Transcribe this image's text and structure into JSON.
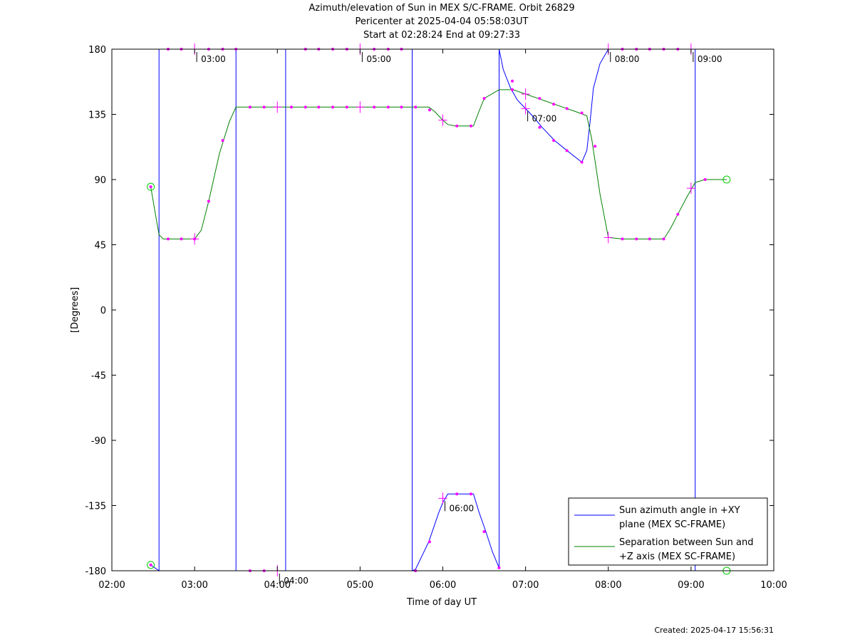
{
  "title": {
    "line1": "Azimuth/elevation of Sun in MEX S/C-FRAME.  Orbit 26829",
    "line2": "Pericenter at 2025-04-04 05:58:03UT",
    "line3": "Start at 02:28:24 End at 09:27:33"
  },
  "footer": {
    "created": "Created: 2025-04-17 15:56:31"
  },
  "colors": {
    "azimuth": "#0000ff",
    "separation": "#008000",
    "markers": "#ff00ff",
    "endpoints": "#00cc00"
  },
  "chart_data": {
    "type": "line",
    "xlabel": "Time of day UT",
    "ylabel": "[Degrees]",
    "xlim": [
      2,
      10
    ],
    "ylim": [
      -180,
      180
    ],
    "xticks": [
      2,
      3,
      4,
      5,
      6,
      7,
      8,
      9,
      10
    ],
    "xtick_labels": [
      "02:00",
      "03:00",
      "04:00",
      "05:00",
      "06:00",
      "07:00",
      "08:00",
      "09:00",
      "10:00"
    ],
    "yticks": [
      180,
      135,
      90,
      45,
      0,
      -45,
      -90,
      -135,
      -180
    ],
    "ytick_labels": [
      "180",
      "135",
      "90",
      "45",
      "0",
      "-45",
      "-90",
      "-135",
      "-180"
    ],
    "legend_position": "bottom-right",
    "series": [
      {
        "name": "Sun azimuth angle in +XY plane (MEX SC-FRAME)",
        "legend_lines": [
          "Sun azimuth angle in +XY",
          "plane (MEX SC-FRAME)"
        ],
        "segments": [
          [
            [
              2.47,
              -176
            ],
            [
              2.57,
              -180
            ],
            [
              2.57,
              180
            ],
            [
              3.5,
              180
            ],
            [
              3.5,
              -180
            ],
            [
              4.1,
              -180
            ],
            [
              4.1,
              180
            ],
            [
              5.63,
              180
            ],
            [
              5.63,
              -180
            ],
            [
              5.67,
              -179
            ],
            [
              5.83,
              -160
            ],
            [
              5.95,
              -140
            ],
            [
              6.0,
              -133
            ],
            [
              6.06,
              -127
            ],
            [
              6.15,
              -127
            ],
            [
              6.37,
              -127
            ],
            [
              6.44,
              -140
            ],
            [
              6.52,
              -153
            ],
            [
              6.6,
              -167
            ],
            [
              6.68,
              -178
            ],
            [
              6.68,
              180
            ]
          ],
          [
            [
              6.68,
              180
            ],
            [
              6.73,
              166
            ],
            [
              6.82,
              153
            ],
            [
              6.9,
              145
            ],
            [
              7.0,
              139
            ],
            [
              7.1,
              133
            ],
            [
              7.2,
              126
            ],
            [
              7.35,
              117
            ],
            [
              7.5,
              110
            ],
            [
              7.68,
              102
            ],
            [
              7.74,
              110
            ],
            [
              7.78,
              130
            ],
            [
              7.82,
              153
            ],
            [
              7.9,
              170
            ],
            [
              8.0,
              180
            ],
            [
              9.05,
              180
            ],
            [
              9.05,
              -180
            ],
            [
              9.43,
              -180
            ]
          ]
        ],
        "markers": [
          [
            2.47,
            -176
          ],
          [
            2.68,
            180
          ],
          [
            2.84,
            180
          ],
          [
            3.17,
            180
          ],
          [
            3.34,
            180
          ],
          [
            3.5,
            180
          ],
          [
            3.67,
            -180
          ],
          [
            3.84,
            -180
          ],
          [
            4.34,
            180
          ],
          [
            4.5,
            180
          ],
          [
            4.67,
            180
          ],
          [
            4.84,
            180
          ],
          [
            5.17,
            180
          ],
          [
            5.34,
            180
          ],
          [
            5.5,
            180
          ],
          [
            5.67,
            -180
          ],
          [
            5.84,
            -160
          ],
          [
            6.17,
            -127
          ],
          [
            6.34,
            -127
          ],
          [
            6.5,
            -153
          ],
          [
            6.68,
            -178
          ],
          [
            6.84,
            158
          ],
          [
            7.17,
            126
          ],
          [
            7.34,
            117
          ],
          [
            7.5,
            110
          ],
          [
            7.68,
            102
          ],
          [
            8.17,
            180
          ],
          [
            8.34,
            180
          ],
          [
            8.5,
            180
          ],
          [
            8.67,
            180
          ],
          [
            8.84,
            180
          ]
        ],
        "hour_marks": [
          [
            3.0,
            180
          ],
          [
            4.0,
            -180
          ],
          [
            5.0,
            180
          ],
          [
            6.0,
            -130
          ],
          [
            7.0,
            139
          ],
          [
            8.0,
            180
          ],
          [
            9.0,
            180
          ]
        ],
        "endpoints": [
          [
            2.47,
            -176
          ],
          [
            9.43,
            -180
          ]
        ]
      },
      {
        "name": "Separation between Sun and +Z axis (MEX SC-FRAME)",
        "legend_lines": [
          "Separation between Sun and",
          "+Z axis (MEX SC-FRAME)"
        ],
        "points": [
          [
            2.47,
            85
          ],
          [
            2.53,
            65
          ],
          [
            2.57,
            52
          ],
          [
            2.62,
            49
          ],
          [
            2.7,
            49
          ],
          [
            2.85,
            49
          ],
          [
            3.0,
            49
          ],
          [
            3.08,
            55
          ],
          [
            3.17,
            75
          ],
          [
            3.3,
            108
          ],
          [
            3.42,
            130
          ],
          [
            3.5,
            140
          ],
          [
            3.67,
            140
          ],
          [
            4.0,
            140
          ],
          [
            4.5,
            140
          ],
          [
            5.0,
            140
          ],
          [
            5.5,
            140
          ],
          [
            5.83,
            140
          ],
          [
            5.9,
            137
          ],
          [
            6.0,
            131
          ],
          [
            6.06,
            128
          ],
          [
            6.15,
            127
          ],
          [
            6.37,
            127
          ],
          [
            6.43,
            136
          ],
          [
            6.5,
            146
          ],
          [
            6.68,
            152
          ],
          [
            6.85,
            152
          ],
          [
            7.0,
            149
          ],
          [
            7.2,
            145
          ],
          [
            7.4,
            141
          ],
          [
            7.6,
            137
          ],
          [
            7.74,
            134
          ],
          [
            7.8,
            118
          ],
          [
            7.9,
            80
          ],
          [
            8.0,
            50
          ],
          [
            8.17,
            49
          ],
          [
            8.34,
            49
          ],
          [
            8.5,
            49
          ],
          [
            8.67,
            49
          ],
          [
            8.75,
            56
          ],
          [
            8.84,
            66
          ],
          [
            8.95,
            78
          ],
          [
            9.05,
            88
          ],
          [
            9.17,
            90
          ],
          [
            9.43,
            90
          ]
        ],
        "markers": [
          [
            2.47,
            85
          ],
          [
            2.68,
            49
          ],
          [
            2.84,
            49
          ],
          [
            3.0,
            49
          ],
          [
            3.17,
            75
          ],
          [
            3.34,
            117
          ],
          [
            3.67,
            140
          ],
          [
            3.84,
            140
          ],
          [
            4.17,
            140
          ],
          [
            4.34,
            140
          ],
          [
            4.5,
            140
          ],
          [
            4.67,
            140
          ],
          [
            4.84,
            140
          ],
          [
            5.17,
            140
          ],
          [
            5.34,
            140
          ],
          [
            5.5,
            140
          ],
          [
            5.67,
            140
          ],
          [
            5.84,
            138
          ],
          [
            6.17,
            127
          ],
          [
            6.34,
            127
          ],
          [
            6.5,
            146
          ],
          [
            6.84,
            152
          ],
          [
            7.17,
            146
          ],
          [
            7.34,
            142
          ],
          [
            7.5,
            139
          ],
          [
            7.68,
            136
          ],
          [
            7.84,
            113
          ],
          [
            8.17,
            49
          ],
          [
            8.34,
            49
          ],
          [
            8.5,
            49
          ],
          [
            8.67,
            49
          ],
          [
            8.84,
            66
          ],
          [
            9.17,
            90
          ]
        ],
        "hour_marks": [
          [
            3.0,
            49
          ],
          [
            4.0,
            140
          ],
          [
            5.0,
            140
          ],
          [
            6.0,
            131
          ],
          [
            7.0,
            149
          ],
          [
            8.0,
            50
          ],
          [
            9.0,
            84
          ]
        ],
        "endpoints": [
          [
            2.47,
            85
          ],
          [
            9.43,
            90
          ]
        ]
      }
    ]
  }
}
